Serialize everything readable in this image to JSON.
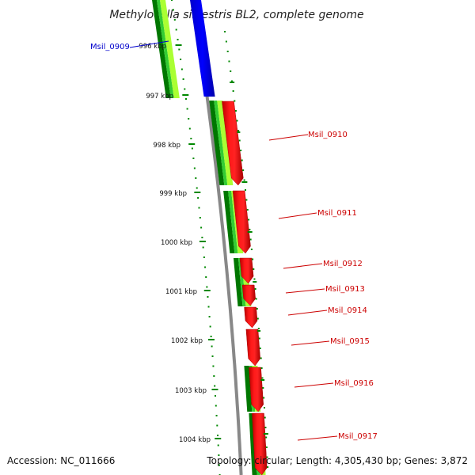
{
  "title": "Methylocella silvestris BL2, complete genome",
  "footer": {
    "accession": "Accession: NC_011666",
    "summary": "Topology: circular; Length: 4,305,430 bp; Genes: 3,872"
  },
  "colors": {
    "cds": "#ff0000",
    "blast_hit": "#0000ff",
    "gene_label_forward": "#0000cc",
    "gene_label_reverse": "#cc0000",
    "backbone": "#888888",
    "ticks": "#008800",
    "gc_dark": "#007700",
    "gc_mid": "#33cc33",
    "gc_light": "#aaff33"
  },
  "tick_labels": [
    "996 kbp",
    "997 kbp",
    "998 kbp",
    "999 kbp",
    "1000 kbp",
    "1001 kbp",
    "1002 kbp",
    "1003 kbp",
    "1004 kbp"
  ],
  "genes": [
    {
      "label": "Msil_0909",
      "strand": "forward"
    },
    {
      "label": "Msil_0910",
      "strand": "reverse"
    },
    {
      "label": "Msil_0911",
      "strand": "reverse"
    },
    {
      "label": "Msil_0912",
      "strand": "reverse"
    },
    {
      "label": "Msil_0913",
      "strand": "reverse"
    },
    {
      "label": "Msil_0914",
      "strand": "reverse"
    },
    {
      "label": "Msil_0915",
      "strand": "reverse"
    },
    {
      "label": "Msil_0916",
      "strand": "reverse"
    },
    {
      "label": "Msil_0917",
      "strand": "reverse"
    }
  ]
}
